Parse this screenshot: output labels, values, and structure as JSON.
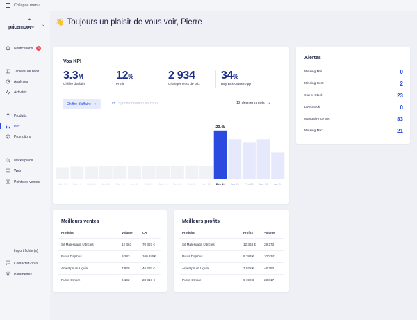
{
  "topbar": {
    "collapse_label": "Collapse menu"
  },
  "logo": {
    "brand": "pricemoov",
    "sub": "SPOT"
  },
  "header": {
    "wave": "👋",
    "greeting": "Toujours un plaisir de vous voir, Pierre"
  },
  "sidebar": {
    "notifications": {
      "label": "Notifications",
      "badge": "3"
    },
    "items": [
      {
        "label": "Tableau de bord",
        "icon": "dashboard-icon"
      },
      {
        "label": "Analyses",
        "icon": "analytics-icon"
      },
      {
        "label": "Activités",
        "icon": "activity-icon"
      },
      {
        "label": "Produits",
        "icon": "products-icon"
      },
      {
        "label": "Prix",
        "icon": "price-icon"
      },
      {
        "label": "Promotions",
        "icon": "promotions-icon"
      },
      {
        "label": "Marketplace",
        "icon": "marketplace-icon"
      },
      {
        "label": "Web",
        "icon": "web-icon"
      },
      {
        "label": "Points de ventes",
        "icon": "store-icon"
      }
    ],
    "active_item": "Prix",
    "bottom": [
      {
        "label": "Import fichier(s)",
        "icon": "import-icon"
      },
      {
        "label": "Contactez-nous",
        "icon": "contact-icon"
      },
      {
        "label": "Paramètres",
        "icon": "settings-icon"
      }
    ]
  },
  "kpi_card": {
    "title": "Vos KPI",
    "kpis": [
      {
        "value": "3.3",
        "suffix": "M",
        "label": "Chiffre d'affaire"
      },
      {
        "value": "12",
        "suffix": "%",
        "label": "Profit"
      },
      {
        "value": "2 934",
        "suffix": "",
        "label": "Changements de prix"
      },
      {
        "value": "34",
        "suffix": "%",
        "label": "Buy Box Owners*pp"
      }
    ],
    "metric_select": "Chiffre d'affaire",
    "sync_label": "Synchronisation en cours",
    "period_select": "12 derniers mois"
  },
  "chart_data": {
    "type": "bar",
    "categories": [
      "Jan 19",
      "Fév 19",
      "Mar 19",
      "Avr 19",
      "Mai 19",
      "Jun 19",
      "Jul 19",
      "Aoû 19",
      "Sep 19",
      "Oct 19",
      "Nov 19",
      "Déc 19",
      "Jan 20",
      "Fév 20",
      "Mar 20",
      "Avr 20"
    ],
    "values": [
      5.6,
      5.9,
      5.9,
      6.1,
      6.1,
      6.1,
      6.1,
      6.1,
      6.1,
      6.5,
      6.3,
      23.4,
      19.2,
      17.8,
      19.2,
      12.7
    ],
    "highlight_index": 11,
    "highlight_label": "23.4k",
    "ylim": [
      0,
      24
    ],
    "colors": {
      "highlight": "#2b4be0",
      "future": "#e6e9fb",
      "past": "#f1f2f6"
    }
  },
  "alerts": {
    "title": "Alertes",
    "rows": [
      {
        "label": "Missing Min",
        "count": "0"
      },
      {
        "label": "Missing Cost",
        "count": "2"
      },
      {
        "label": "Out of Stock",
        "count": "23"
      },
      {
        "label": "Low Stock",
        "count": "0"
      },
      {
        "label": "Manual Price Set",
        "count": "83"
      },
      {
        "label": "Missing Max",
        "count": "21"
      }
    ]
  },
  "ventes": {
    "title": "Meilleurs ventes",
    "headers": [
      "Produits",
      "Volume",
      "CA"
    ],
    "rows": [
      [
        "Sit Malesuada Ultricies",
        "12 363",
        "70 367 €"
      ],
      [
        "Risus Dapibus",
        "9 283",
        "100 345€"
      ],
      [
        "Amet Ipsum Ligula",
        "7 928",
        "46 293 €"
      ],
      [
        "Purus Ornare",
        "6 192",
        "23 817 €"
      ]
    ]
  },
  "profits": {
    "title": "Meilleurs profits",
    "headers": [
      "Produits",
      "Profits",
      "Volume"
    ],
    "rows": [
      [
        "Sit Malesuada Ultricies",
        "12 363 €",
        "29 273"
      ],
      [
        "Risus Dapibus",
        "9 283 €",
        "100 341"
      ],
      [
        "Amet Ipsum Ligula",
        "7 928 €",
        "46 293"
      ],
      [
        "Purus Ornare",
        "6 192 €",
        "23 817"
      ]
    ]
  }
}
